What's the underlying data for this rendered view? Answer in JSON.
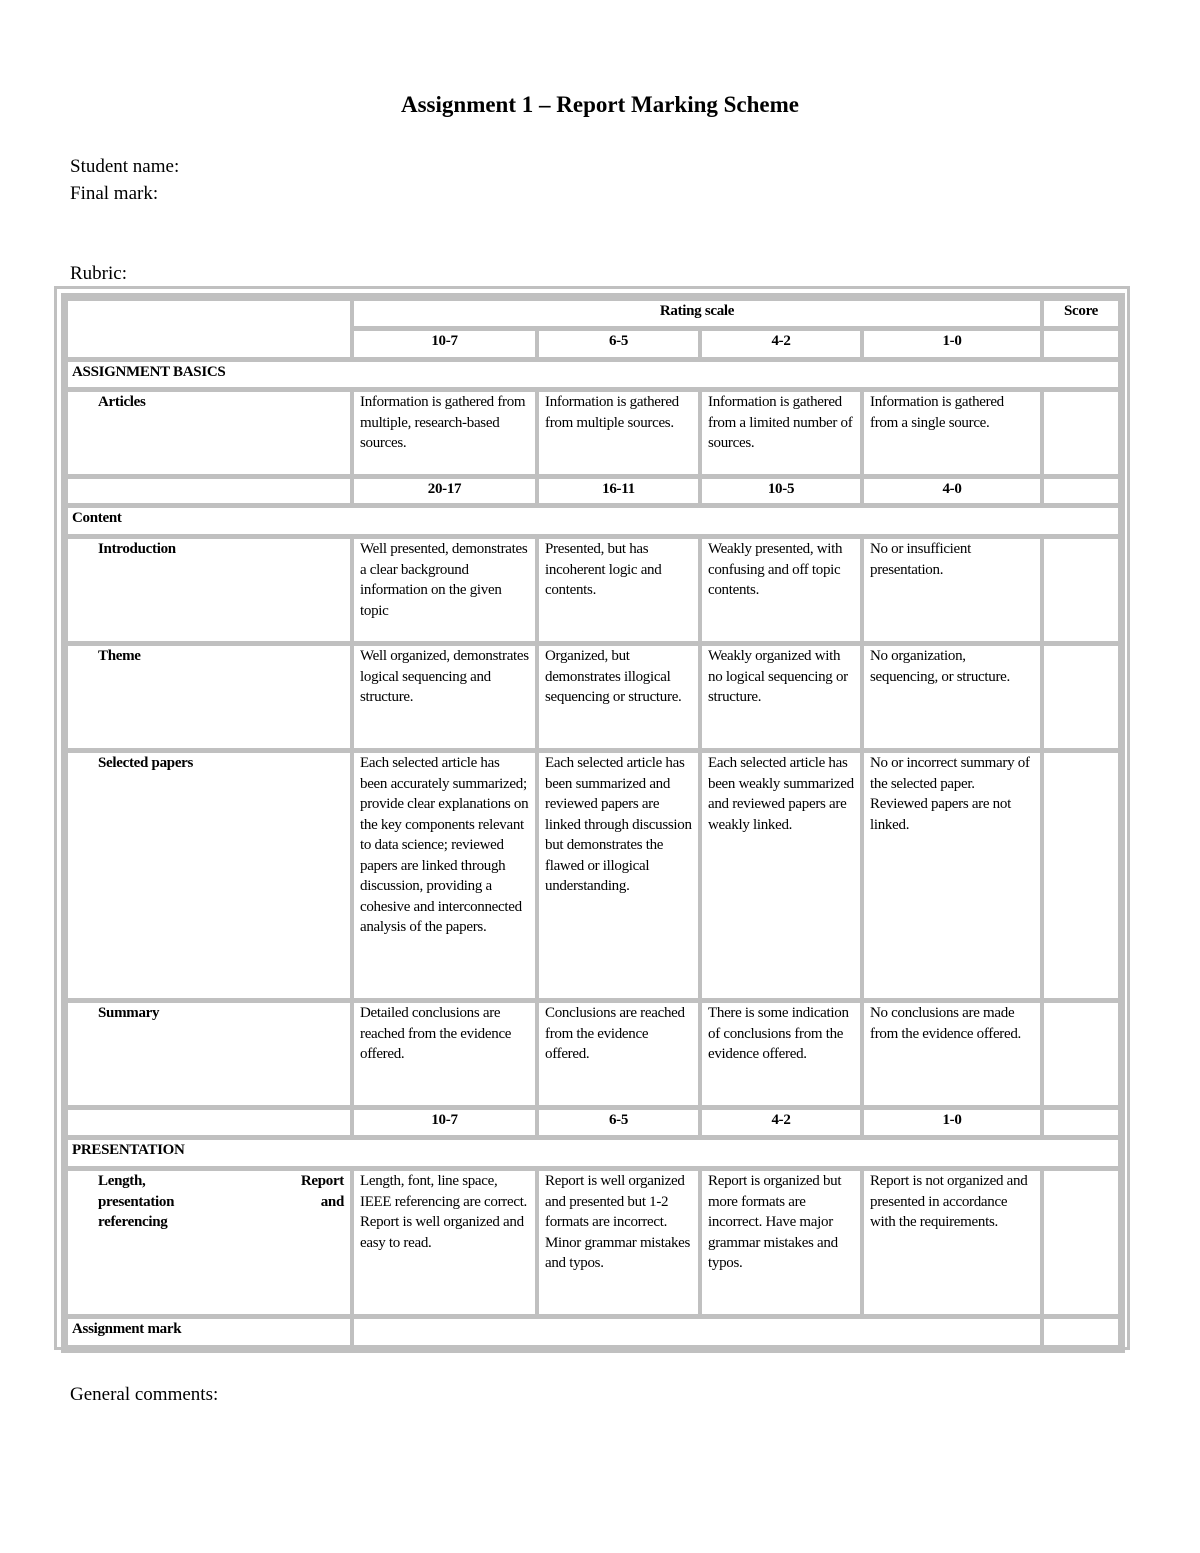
{
  "title": "Assignment 1 – Report Marking Scheme",
  "student_name_label": "Student name:",
  "final_mark_label": "Final mark:",
  "rubric_label": "Rubric:",
  "general_comments_label": "General comments:",
  "table": {
    "rating_scale": "Rating scale",
    "score": "Score",
    "ranges_basics": [
      "10-7",
      "6-5",
      "4-2",
      "1-0"
    ],
    "ranges_content": [
      "20-17",
      "16-11",
      "10-5",
      "4-0"
    ],
    "ranges_presentation": [
      "10-7",
      "6-5",
      "4-2",
      "1-0"
    ],
    "sections": {
      "basics": "ASSIGNMENT BASICS",
      "content": "Content",
      "presentation": "PRESENTATION"
    },
    "rows": {
      "articles": {
        "label": "Articles",
        "cells": [
          "Information is gathered from multiple, research-based sources.",
          "Information is gathered from multiple sources.",
          "Information is gathered from a limited number of sources.",
          "Information is gathered from a single source."
        ]
      },
      "introduction": {
        "label": "Introduction",
        "cells": [
          "Well presented, demonstrates a clear background information on the given topic",
          "Presented, but has incoherent logic and contents.",
          "Weakly presented, with confusing and off topic contents.",
          "No or insufficient presentation."
        ]
      },
      "theme": {
        "label": "Theme",
        "cells": [
          "Well organized, demonstrates logical sequencing and structure.",
          "Organized, but demonstrates illogical sequencing or structure.",
          "Weakly organized with no logical sequencing or structure.",
          "No organization, sequencing, or structure."
        ]
      },
      "selected_papers": {
        "label": "Selected papers",
        "cells": [
          "Each selected article has been accurately summarized; provide clear explanations on the key components relevant to data science; reviewed papers are linked through discussion, providing a cohesive and interconnected analysis of the papers.",
          "Each selected article has been summarized and reviewed papers are linked through discussion but demonstrates the flawed or illogical understanding.",
          "Each selected article has been weakly summarized and reviewed papers are weakly linked.",
          "No or incorrect summary of the selected paper. Reviewed papers are not linked."
        ]
      },
      "summary": {
        "label": "Summary",
        "cells": [
          "Detailed conclusions are reached from the evidence offered.",
          "Conclusions are reached from the evidence offered.",
          "There is some indication of conclusions from the evidence offered.",
          "No conclusions are made from the evidence offered."
        ]
      },
      "length": {
        "label_a": "Length,",
        "label_b": "Report",
        "label_c": "presentation",
        "label_d": "and",
        "label_e": "referencing",
        "cells": [
          "Length, font, line space, IEEE referencing are correct. Report is well organized and easy to read.",
          "Report is well organized and presented but 1-2 formats are incorrect. Minor grammar mistakes and typos.",
          "Report is organized but more formats are incorrect. Have major grammar mistakes and typos.",
          "Report is not organized and presented in accordance with the requirements."
        ]
      }
    },
    "assignment_mark": "Assignment mark"
  }
}
